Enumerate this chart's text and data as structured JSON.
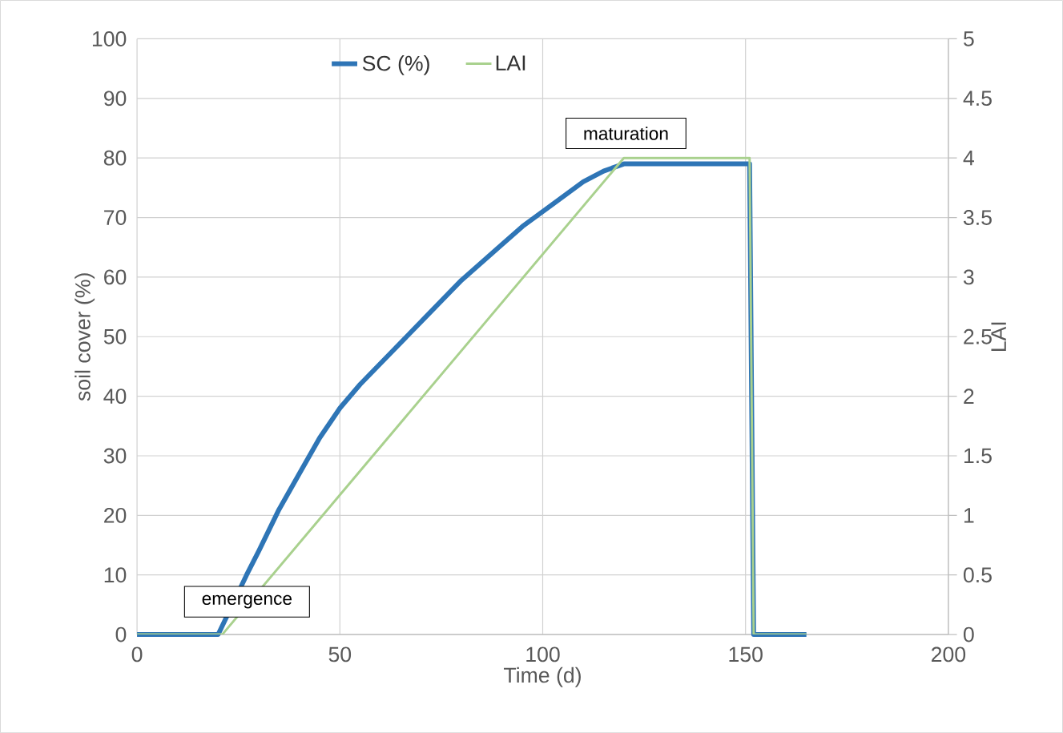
{
  "chart_data": {
    "type": "line",
    "xlabel": "Time (d)",
    "ylabel": "soil cover (%)",
    "y2label": "LAI",
    "xlim": [
      0,
      200
    ],
    "xticks": [
      0,
      50,
      100,
      150,
      200
    ],
    "ylim": [
      0,
      100
    ],
    "yticks": [
      0,
      10,
      20,
      30,
      40,
      50,
      60,
      70,
      80,
      90,
      100
    ],
    "y2lim": [
      0,
      5
    ],
    "y2ticks": [
      0,
      0.5,
      1,
      1.5,
      2,
      2.5,
      3,
      3.5,
      4,
      4.5,
      5
    ],
    "grid": true,
    "legend": "top",
    "line_style": "solid",
    "series": [
      {
        "name": "SC (%)",
        "color": "#2e75b6",
        "x": [
          0,
          20,
          22,
          25,
          27,
          30,
          35,
          40,
          45,
          50,
          55,
          60,
          65,
          70,
          75,
          80,
          85,
          90,
          95,
          100,
          105,
          110,
          115,
          120,
          151,
          152,
          165
        ],
        "values": [
          0,
          0,
          null,
          null,
          10,
          14,
          21,
          27,
          33,
          38,
          42,
          45.5,
          49,
          52.5,
          56,
          59.5,
          62.5,
          65.5,
          68.5,
          71,
          73.5,
          76,
          77.8,
          79,
          79,
          0,
          0
        ]
      },
      {
        "name": "LAI",
        "color": "#a9d18e",
        "axis": "y2",
        "x": [
          0,
          21,
          120,
          151,
          152,
          165
        ],
        "values": [
          0,
          0,
          4,
          4,
          0,
          0
        ]
      }
    ],
    "annotations": [
      {
        "text": "emergence",
        "x": 20,
        "y": 0
      },
      {
        "text": "maturation",
        "x": 120,
        "y": 79
      }
    ]
  }
}
